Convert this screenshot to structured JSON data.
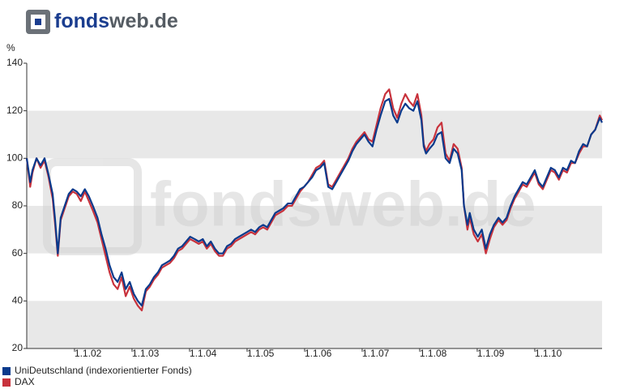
{
  "logo": {
    "brand": "fonds",
    "suffix": "web.de"
  },
  "watermark": "fondsweb.de",
  "chart_data": {
    "type": "line",
    "y_unit": "%",
    "x": [
      2001.17,
      2001.23,
      2001.27,
      2001.34,
      2001.41,
      2001.48,
      2001.55,
      2001.62,
      2001.66,
      2001.71,
      2001.76,
      2001.83,
      2001.9,
      2001.97,
      2002.04,
      2002.11,
      2002.18,
      2002.25,
      2002.32,
      2002.4,
      2002.47,
      2002.54,
      2002.61,
      2002.68,
      2002.75,
      2002.82,
      2002.89,
      2002.96,
      2003.03,
      2003.1,
      2003.17,
      2003.24,
      2003.31,
      2003.38,
      2003.45,
      2003.52,
      2003.59,
      2003.66,
      2003.73,
      2003.8,
      2003.87,
      2003.94,
      2004.01,
      2004.09,
      2004.16,
      2004.23,
      2004.3,
      2004.37,
      2004.44,
      2004.51,
      2004.58,
      2004.65,
      2004.72,
      2004.79,
      2004.86,
      2004.93,
      2005.0,
      2005.07,
      2005.14,
      2005.21,
      2005.28,
      2005.35,
      2005.42,
      2005.49,
      2005.56,
      2005.63,
      2005.71,
      2005.78,
      2005.85,
      2005.92,
      2005.99,
      2006.06,
      2006.13,
      2006.2,
      2006.27,
      2006.34,
      2006.41,
      2006.48,
      2006.55,
      2006.62,
      2006.69,
      2006.76,
      2006.83,
      2006.9,
      2006.97,
      2007.04,
      2007.11,
      2007.18,
      2007.25,
      2007.32,
      2007.4,
      2007.47,
      2007.54,
      2007.61,
      2007.68,
      2007.75,
      2007.82,
      2007.89,
      2007.96,
      2008.03,
      2008.07,
      2008.11,
      2008.17,
      2008.24,
      2008.31,
      2008.38,
      2008.45,
      2008.52,
      2008.59,
      2008.66,
      2008.73,
      2008.77,
      2008.83,
      2008.87,
      2008.94,
      2009.01,
      2009.08,
      2009.15,
      2009.22,
      2009.29,
      2009.37,
      2009.44,
      2009.51,
      2009.58,
      2009.65,
      2009.72,
      2009.79,
      2009.86,
      2009.93,
      2010.0,
      2010.07,
      2010.14,
      2010.21,
      2010.28,
      2010.35,
      2010.42,
      2010.49,
      2010.56,
      2010.63,
      2010.7,
      2010.77,
      2010.84,
      2010.91,
      2010.98,
      2011.05,
      2011.13,
      2011.17
    ],
    "series": [
      {
        "name": "UniDeutschland (indexorientierter Fonds)",
        "color": "#0a3a8c",
        "values": [
          100,
          90,
          95,
          100,
          97,
          100,
          93,
          85,
          75,
          60,
          75,
          80,
          85,
          87,
          86,
          84,
          87,
          84,
          80,
          75,
          68,
          62,
          55,
          50,
          48,
          52,
          45,
          48,
          43,
          40,
          38,
          45,
          47,
          50,
          52,
          55,
          56,
          57,
          59,
          62,
          63,
          65,
          67,
          66,
          65,
          66,
          63,
          65,
          62,
          60,
          60,
          63,
          64,
          66,
          67,
          68,
          69,
          70,
          69,
          71,
          72,
          71,
          74,
          77,
          78,
          79,
          81,
          81,
          84,
          87,
          88,
          90,
          92,
          95,
          96,
          98,
          88,
          87,
          90,
          93,
          96,
          99,
          103,
          106,
          108,
          110,
          107,
          105,
          112,
          118,
          124,
          125,
          118,
          115,
          120,
          123,
          121,
          120,
          124,
          116,
          105,
          102,
          104,
          106,
          110,
          111,
          100,
          98,
          104,
          102,
          95,
          80,
          72,
          77,
          70,
          67,
          70,
          62,
          68,
          72,
          75,
          73,
          75,
          80,
          84,
          87,
          90,
          89,
          92,
          95,
          90,
          88,
          92,
          96,
          95,
          92,
          96,
          95,
          99,
          98,
          103,
          106,
          105,
          110,
          112,
          117,
          115
        ]
      },
      {
        "name": "DAX",
        "color": "#c8323c",
        "values": [
          100,
          88,
          94,
          100,
          96,
          99,
          92,
          83,
          73,
          59,
          74,
          79,
          84,
          86,
          85,
          82,
          86,
          82,
          78,
          73,
          66,
          59,
          52,
          47,
          45,
          50,
          42,
          46,
          41,
          38,
          36,
          44,
          46,
          49,
          51,
          54,
          55,
          56,
          58,
          61,
          62,
          64,
          66,
          65,
          64,
          65,
          62,
          64,
          61,
          59,
          59,
          62,
          63,
          65,
          66,
          67,
          68,
          69,
          68,
          70,
          71,
          70,
          73,
          76,
          77,
          78,
          80,
          80,
          83,
          86,
          88,
          90,
          93,
          96,
          97,
          99,
          89,
          88,
          91,
          94,
          97,
          100,
          104,
          107,
          109,
          111,
          108,
          107,
          114,
          121,
          127,
          129,
          121,
          117,
          123,
          127,
          124,
          122,
          127,
          118,
          106,
          103,
          106,
          108,
          113,
          115,
          102,
          99,
          106,
          104,
          96,
          80,
          70,
          75,
          68,
          65,
          68,
          60,
          66,
          71,
          74,
          72,
          74,
          79,
          83,
          86,
          89,
          88,
          91,
          94,
          89,
          87,
          91,
          95,
          94,
          91,
          95,
          94,
          98,
          98,
          102,
          105,
          105,
          110,
          112,
          118,
          116
        ]
      }
    ],
    "xlim": [
      2001.17,
      2011.17
    ],
    "xticks": [
      {
        "value": 2002,
        "label": "1.1.02"
      },
      {
        "value": 2003,
        "label": "1.1.03"
      },
      {
        "value": 2004,
        "label": "1.1.04"
      },
      {
        "value": 2005,
        "label": "1.1.05"
      },
      {
        "value": 2006,
        "label": "1.1.06"
      },
      {
        "value": 2007,
        "label": "1.1.07"
      },
      {
        "value": 2008,
        "label": "1.1.08"
      },
      {
        "value": 2009,
        "label": "1.1.09"
      },
      {
        "value": 2010,
        "label": "1.1.10"
      }
    ],
    "ylim": [
      20,
      140
    ],
    "yticks": [
      20,
      40,
      60,
      80,
      100,
      120,
      140
    ],
    "bands": true,
    "legend": "bottom-left"
  }
}
